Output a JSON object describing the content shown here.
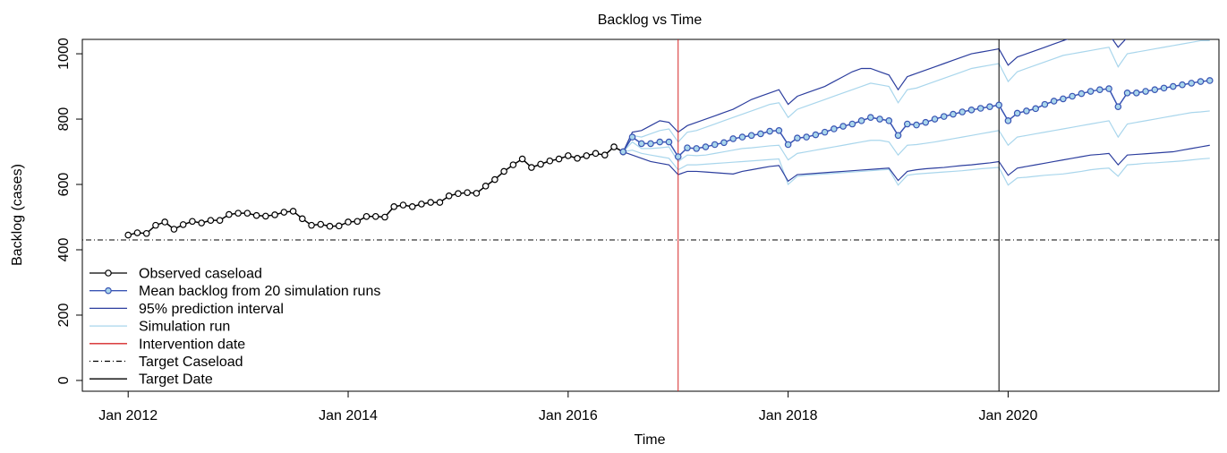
{
  "chart_data": {
    "type": "line",
    "title": "Backlog vs Time",
    "x_label": "Time",
    "y_label": "Backlog (cases)",
    "xlim": [
      "2011-08",
      "2021-12"
    ],
    "ylim": [
      -33,
      1044
    ],
    "xticks": [
      {
        "value": "2012-01",
        "label": "Jan 2012"
      },
      {
        "value": "2014-01",
        "label": "Jan 2014"
      },
      {
        "value": "2016-01",
        "label": "Jan 2016"
      },
      {
        "value": "2018-01",
        "label": "Jan 2018"
      },
      {
        "value": "2020-01",
        "label": "Jan 2020"
      }
    ],
    "yticks": [
      0,
      200,
      400,
      600,
      800,
      1000
    ],
    "legend": "bottom-left",
    "x_observed": [
      "2012-01",
      "2012-02",
      "2012-03",
      "2012-04",
      "2012-05",
      "2012-06",
      "2012-07",
      "2012-08",
      "2012-09",
      "2012-10",
      "2012-11",
      "2012-12",
      "2013-01",
      "2013-02",
      "2013-03",
      "2013-04",
      "2013-05",
      "2013-06",
      "2013-07",
      "2013-08",
      "2013-09",
      "2013-10",
      "2013-11",
      "2013-12",
      "2014-01",
      "2014-02",
      "2014-03",
      "2014-04",
      "2014-05",
      "2014-06",
      "2014-07",
      "2014-08",
      "2014-09",
      "2014-10",
      "2014-11",
      "2014-12",
      "2015-01",
      "2015-02",
      "2015-03",
      "2015-04",
      "2015-05",
      "2015-06",
      "2015-07",
      "2015-08",
      "2015-09",
      "2015-10",
      "2015-11",
      "2015-12",
      "2016-01",
      "2016-02",
      "2016-03",
      "2016-04",
      "2016-05",
      "2016-06",
      "2016-07"
    ],
    "x_forecast": [
      "2016-07",
      "2016-08",
      "2016-09",
      "2016-10",
      "2016-11",
      "2016-12",
      "2017-01",
      "2017-02",
      "2017-03",
      "2017-04",
      "2017-05",
      "2017-06",
      "2017-07",
      "2017-08",
      "2017-09",
      "2017-10",
      "2017-11",
      "2017-12",
      "2018-01",
      "2018-02",
      "2018-03",
      "2018-04",
      "2018-05",
      "2018-06",
      "2018-07",
      "2018-08",
      "2018-09",
      "2018-10",
      "2018-11",
      "2018-12",
      "2019-01",
      "2019-02",
      "2019-03",
      "2019-04",
      "2019-05",
      "2019-06",
      "2019-07",
      "2019-08",
      "2019-09",
      "2019-10",
      "2019-11",
      "2019-12",
      "2020-01",
      "2020-02",
      "2020-03",
      "2020-04",
      "2020-05",
      "2020-06",
      "2020-07",
      "2020-08",
      "2020-09",
      "2020-10",
      "2020-11",
      "2020-12",
      "2021-01",
      "2021-02",
      "2021-03",
      "2021-04",
      "2021-05",
      "2021-06",
      "2021-07",
      "2021-08",
      "2021-09",
      "2021-10",
      "2021-11"
    ],
    "simulation": {
      "name": "Simulation run",
      "color": "#a9d6ec",
      "runs": [
        [
          700,
          750,
          745,
          755,
          765,
          770,
          730,
          760,
          765,
          775,
          785,
          795,
          805,
          815,
          825,
          835,
          845,
          850,
          805,
          830,
          840,
          850,
          860,
          870,
          880,
          890,
          900,
          910,
          905,
          900,
          850,
          890,
          895,
          905,
          915,
          925,
          935,
          945,
          955,
          960,
          965,
          970,
          915,
          945,
          955,
          965,
          975,
          985,
          995,
          1000,
          1005,
          1010,
          1015,
          1020,
          960,
          1000,
          1005,
          1010,
          1015,
          1020,
          1025,
          1030,
          1035,
          1040,
          1040
        ],
        [
          700,
          730,
          710,
          710,
          712,
          715,
          670,
          690,
          688,
          690,
          695,
          700,
          705,
          710,
          712,
          715,
          718,
          720,
          675,
          695,
          700,
          705,
          710,
          715,
          720,
          725,
          730,
          735,
          735,
          730,
          690,
          720,
          722,
          726,
          730,
          735,
          740,
          745,
          750,
          755,
          760,
          765,
          720,
          745,
          750,
          755,
          760,
          765,
          770,
          775,
          780,
          785,
          790,
          795,
          745,
          785,
          790,
          795,
          800,
          805,
          810,
          815,
          820,
          822,
          825
        ],
        [
          700,
          705,
          695,
          690,
          685,
          680,
          645,
          660,
          660,
          662,
          664,
          666,
          668,
          670,
          672,
          674,
          676,
          678,
          600,
          625,
          628,
          630,
          632,
          634,
          636,
          638,
          640,
          642,
          644,
          646,
          598,
          628,
          632,
          634,
          636,
          638,
          640,
          642,
          645,
          648,
          650,
          652,
          598,
          620,
          622,
          625,
          628,
          630,
          632,
          636,
          640,
          645,
          648,
          650,
          625,
          660,
          662,
          665,
          666,
          668,
          670,
          672,
          675,
          678,
          680
        ]
      ]
    },
    "series": [
      {
        "name": "Observed caseload",
        "color": "#000000",
        "marker_fill": "#ffffff",
        "x_key": "x_observed",
        "values": [
          445,
          452,
          450,
          475,
          485,
          463,
          477,
          487,
          482,
          490,
          490,
          508,
          512,
          512,
          505,
          503,
          507,
          515,
          518,
          495,
          475,
          478,
          472,
          473,
          485,
          487,
          502,
          502,
          500,
          532,
          537,
          532,
          540,
          545,
          545,
          565,
          572,
          575,
          573,
          595,
          615,
          640,
          660,
          678,
          652,
          662,
          672,
          678,
          688,
          680,
          688,
          695,
          690,
          715,
          700
        ]
      },
      {
        "name": "Mean backlog from 20 simulation runs",
        "color": "#3a55b4",
        "marker_fill": "#a9d6ec",
        "x_key": "x_forecast",
        "values": [
          700,
          745,
          725,
          725,
          730,
          730,
          685,
          712,
          710,
          715,
          722,
          728,
          740,
          745,
          750,
          755,
          763,
          765,
          722,
          742,
          745,
          752,
          760,
          770,
          778,
          785,
          795,
          805,
          800,
          795,
          750,
          785,
          782,
          790,
          800,
          808,
          815,
          822,
          828,
          833,
          838,
          843,
          795,
          818,
          825,
          832,
          845,
          855,
          862,
          870,
          878,
          885,
          890,
          893,
          838,
          880,
          880,
          885,
          890,
          895,
          900,
          905,
          910,
          915,
          918
        ]
      }
    ],
    "interval": {
      "name": "95% prediction interval",
      "color": "#2c3e9e",
      "upper": [
        700,
        760,
        765,
        780,
        795,
        790,
        760,
        780,
        790,
        800,
        810,
        820,
        830,
        845,
        860,
        870,
        880,
        890,
        845,
        870,
        880,
        890,
        900,
        915,
        930,
        945,
        955,
        955,
        945,
        935,
        890,
        930,
        940,
        950,
        960,
        970,
        980,
        990,
        1000,
        1005,
        1010,
        1015,
        965,
        990,
        1000,
        1010,
        1020,
        1030,
        1040,
        1050,
        1060,
        1060,
        1060,
        1060,
        1020,
        1050,
        1055,
        1060,
        1060,
        1065,
        1070,
        1075,
        1080,
        1080,
        1080
      ],
      "lower": [
        700,
        690,
        680,
        670,
        665,
        660,
        630,
        640,
        640,
        638,
        636,
        634,
        632,
        640,
        645,
        650,
        655,
        658,
        610,
        630,
        632,
        634,
        636,
        638,
        640,
        642,
        644,
        646,
        648,
        650,
        612,
        640,
        645,
        648,
        650,
        652,
        655,
        658,
        660,
        663,
        666,
        670,
        628,
        650,
        655,
        660,
        665,
        670,
        675,
        680,
        685,
        690,
        692,
        695,
        660,
        690,
        692,
        694,
        696,
        698,
        700,
        705,
        710,
        715,
        720
      ]
    },
    "reference_lines": [
      {
        "name": "Intervention date",
        "axis": "x",
        "value": "2017-01",
        "color": "#d62728",
        "dash": "solid"
      },
      {
        "name": "Target Caseload",
        "axis": "y",
        "value": 430,
        "color": "#000000",
        "dash": "dotdash"
      },
      {
        "name": "Target Date",
        "axis": "x",
        "value": "2019-12",
        "color": "#000000",
        "dash": "solid"
      }
    ]
  }
}
